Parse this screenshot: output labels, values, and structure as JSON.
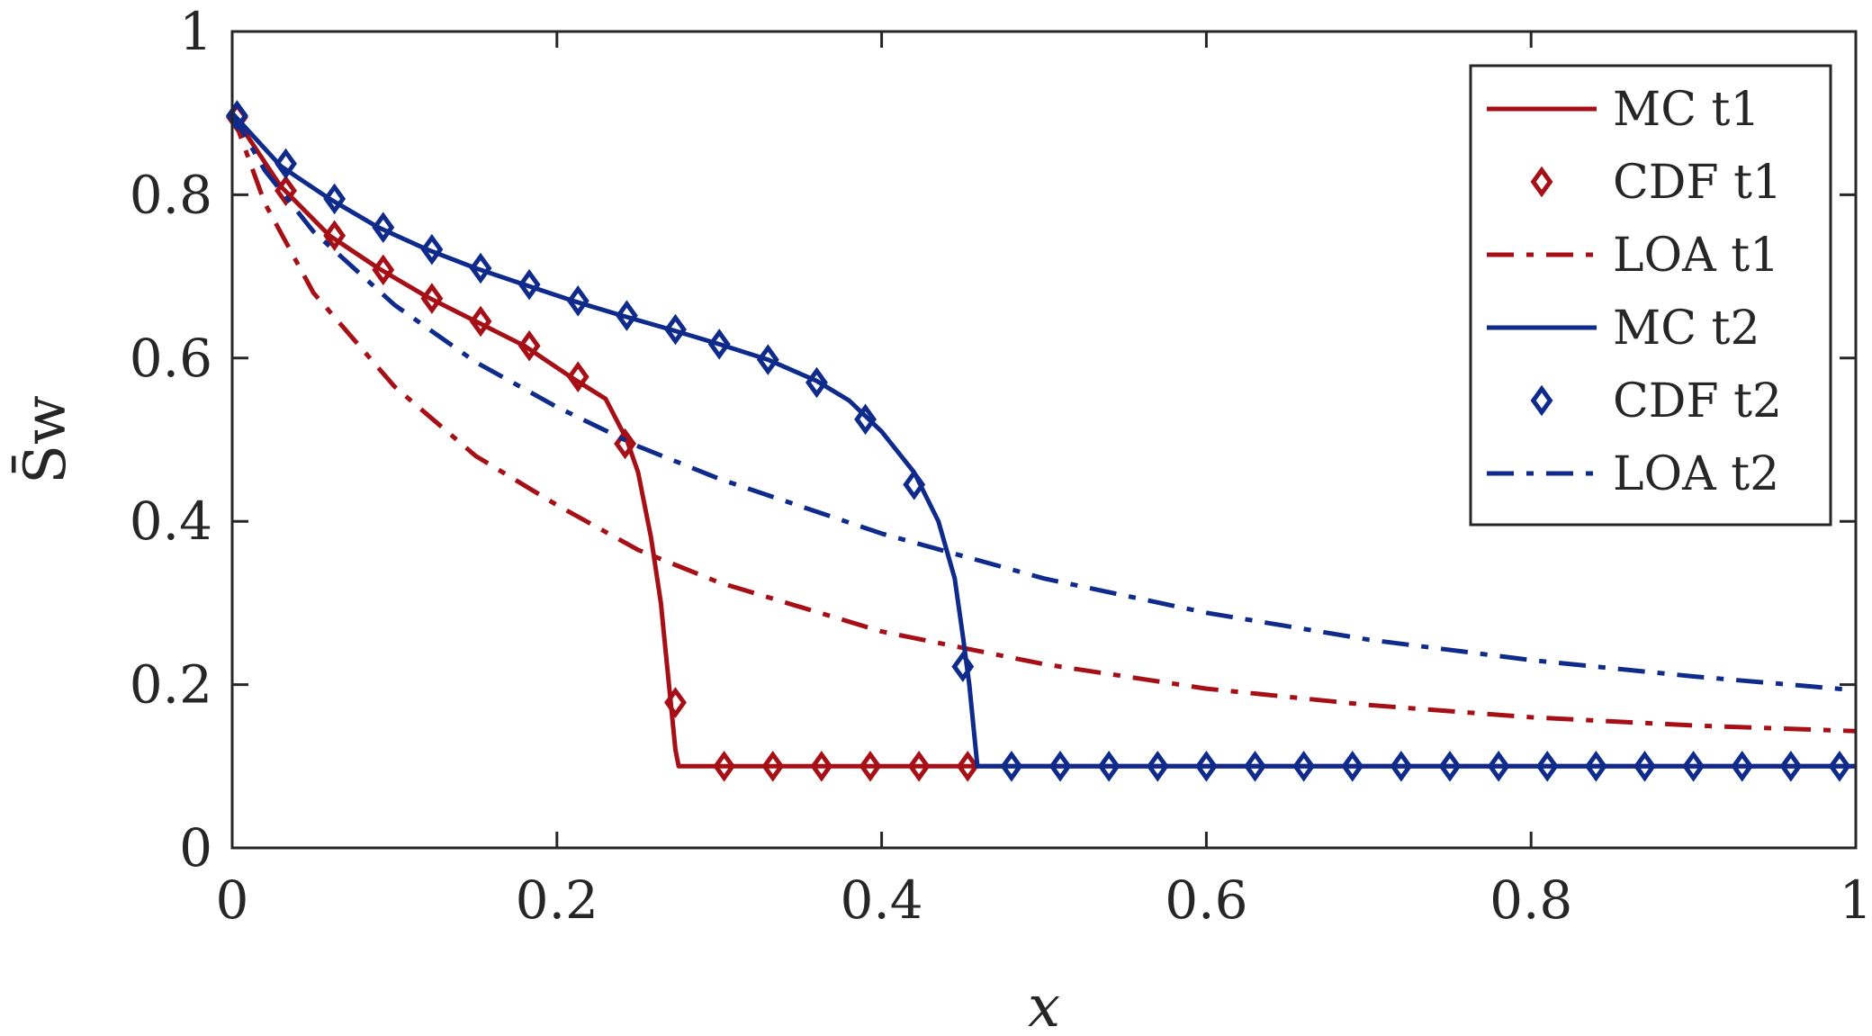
{
  "chart_data": {
    "type": "line",
    "xlabel": "x",
    "ylabel": "S̄w",
    "xlim": [
      0,
      1
    ],
    "ylim": [
      0,
      1
    ],
    "xticks": [
      0,
      0.2,
      0.4,
      0.6,
      0.8,
      1
    ],
    "yticks": [
      0,
      0.2,
      0.4,
      0.6,
      0.8,
      1
    ],
    "xtick_labels": [
      "0",
      "0.2",
      "0.4",
      "0.6",
      "0.8",
      "1"
    ],
    "ytick_labels": [
      "0",
      "0.2",
      "0.4",
      "0.6",
      "0.8",
      "1"
    ],
    "grid": false,
    "box": true,
    "legend_position": "top-right",
    "series": [
      {
        "name": "MC t1",
        "style": "solid",
        "color": "#a50f15",
        "x": [
          0,
          0.03,
          0.06,
          0.09,
          0.12,
          0.15,
          0.18,
          0.21,
          0.23,
          0.243,
          0.25,
          0.258,
          0.264,
          0.268,
          0.271,
          0.273,
          0.275,
          0.3,
          0.4,
          0.5,
          0.6,
          0.7,
          0.8,
          0.9,
          1.0
        ],
        "y": [
          0.9,
          0.81,
          0.75,
          0.71,
          0.675,
          0.645,
          0.615,
          0.575,
          0.55,
          0.5,
          0.46,
          0.38,
          0.3,
          0.22,
          0.16,
          0.12,
          0.1,
          0.1,
          0.1,
          0.1,
          0.1,
          0.1,
          0.1,
          0.1,
          0.1
        ]
      },
      {
        "name": "CDF t1",
        "style": "markers",
        "marker": "diamond",
        "color": "#a50f15",
        "x": [
          0.003,
          0.033,
          0.063,
          0.093,
          0.123,
          0.153,
          0.183,
          0.213,
          0.242,
          0.273,
          0.303,
          0.333,
          0.363,
          0.393,
          0.423,
          0.453
        ],
        "y": [
          0.895,
          0.805,
          0.75,
          0.708,
          0.673,
          0.645,
          0.615,
          0.577,
          0.495,
          0.178,
          0.1,
          0.1,
          0.1,
          0.1,
          0.1,
          0.1
        ]
      },
      {
        "name": "LOA t1",
        "style": "dashdot",
        "color": "#a50f15",
        "x": [
          0,
          0.02,
          0.05,
          0.1,
          0.15,
          0.2,
          0.25,
          0.3,
          0.4,
          0.5,
          0.6,
          0.7,
          0.8,
          0.9,
          1.0
        ],
        "y": [
          0.9,
          0.79,
          0.68,
          0.565,
          0.48,
          0.42,
          0.365,
          0.325,
          0.265,
          0.225,
          0.195,
          0.175,
          0.16,
          0.15,
          0.143
        ]
      },
      {
        "name": "MC t2",
        "style": "solid",
        "color": "#0e2a8a",
        "x": [
          0,
          0.03,
          0.06,
          0.09,
          0.12,
          0.15,
          0.18,
          0.21,
          0.24,
          0.27,
          0.3,
          0.33,
          0.36,
          0.38,
          0.4,
          0.42,
          0.435,
          0.445,
          0.45,
          0.454,
          0.457,
          0.459,
          0.5,
          0.6,
          0.7,
          0.8,
          0.9,
          1.0
        ],
        "y": [
          0.9,
          0.835,
          0.795,
          0.76,
          0.733,
          0.71,
          0.69,
          0.67,
          0.652,
          0.635,
          0.617,
          0.598,
          0.572,
          0.548,
          0.51,
          0.46,
          0.4,
          0.33,
          0.26,
          0.2,
          0.14,
          0.1,
          0.1,
          0.1,
          0.1,
          0.1,
          0.1,
          0.1
        ]
      },
      {
        "name": "CDF t2",
        "style": "markers",
        "marker": "diamond",
        "color": "#0e2a8a",
        "x": [
          0.003,
          0.033,
          0.063,
          0.093,
          0.123,
          0.153,
          0.183,
          0.213,
          0.243,
          0.273,
          0.3,
          0.33,
          0.36,
          0.39,
          0.42,
          0.45,
          0.48,
          0.51,
          0.54,
          0.57,
          0.6,
          0.63,
          0.66,
          0.69,
          0.72,
          0.75,
          0.78,
          0.81,
          0.84,
          0.87,
          0.9,
          0.93,
          0.96,
          0.99
        ],
        "y": [
          0.897,
          0.838,
          0.795,
          0.76,
          0.733,
          0.71,
          0.69,
          0.67,
          0.652,
          0.635,
          0.617,
          0.598,
          0.57,
          0.525,
          0.445,
          0.222,
          0.1,
          0.1,
          0.1,
          0.1,
          0.1,
          0.1,
          0.1,
          0.1,
          0.1,
          0.1,
          0.1,
          0.1,
          0.1,
          0.1,
          0.1,
          0.1,
          0.1,
          0.1
        ]
      },
      {
        "name": "LOA t2",
        "style": "dashdot",
        "color": "#0e2a8a",
        "x": [
          0,
          0.02,
          0.05,
          0.1,
          0.15,
          0.2,
          0.25,
          0.3,
          0.4,
          0.5,
          0.6,
          0.7,
          0.8,
          0.9,
          1.0
        ],
        "y": [
          0.9,
          0.83,
          0.755,
          0.665,
          0.595,
          0.54,
          0.492,
          0.452,
          0.385,
          0.33,
          0.288,
          0.255,
          0.23,
          0.21,
          0.193
        ]
      }
    ]
  }
}
